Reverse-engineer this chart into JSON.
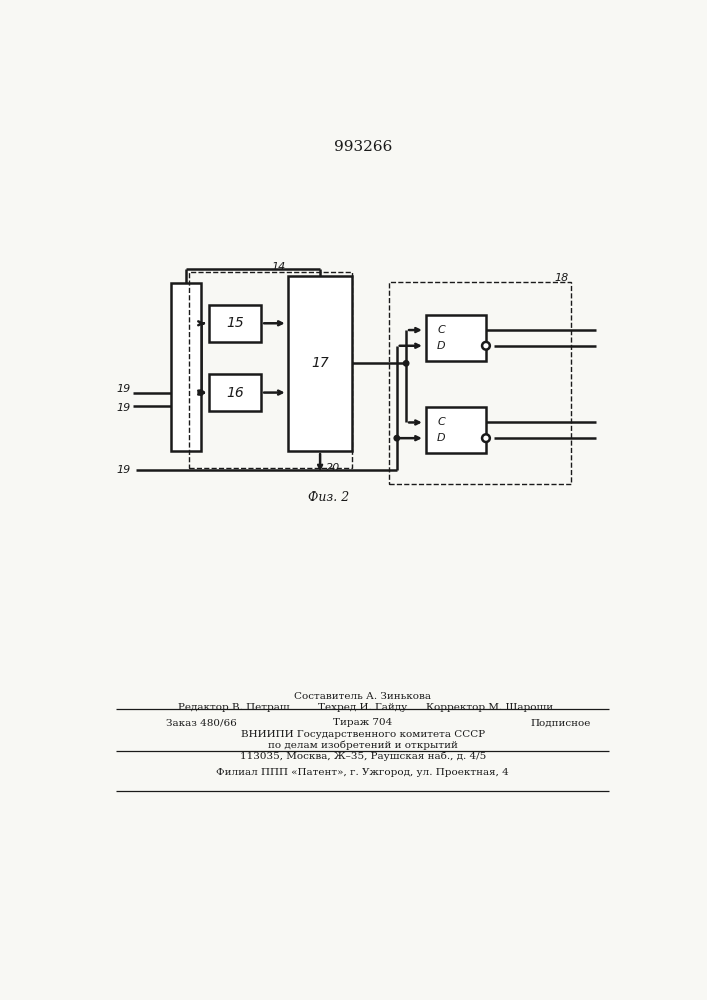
{
  "title": "993266",
  "bg_color": "#f8f8f4",
  "line_color": "#1a1a1a",
  "lw": 1.8,
  "lw_thin": 0.9,
  "lw_dash": 1.0,
  "label14": "14",
  "label15": "15",
  "label16": "16",
  "label17": "17",
  "label18": "18",
  "label19": "19",
  "label20": "20",
  "labelC": "C",
  "labelD": "D",
  "caption": "Фuз. 2",
  "footer_sestavitel": "Составитель А. Зинькова",
  "footer_redaktor": "Редактор В. Петраш",
  "footer_tehred": "Техред И. Гайду",
  "footer_korrektor": "Корректор М. Шароши",
  "footer_zakaz": "Заказ 480/66",
  "footer_tirazh": "Тираж 704",
  "footer_podpisnoe": "Подписное",
  "footer_vniip1": "ВНИИПИ Государственного комитета СССР",
  "footer_vniip2": "по делам изобретений и открытий",
  "footer_addr": "113035, Москва, Ж–35, Раушская наб., д. 4/5",
  "footer_filial": "Филиал ППП «Патент», г. Ужгород, ул. Проектная, 4"
}
